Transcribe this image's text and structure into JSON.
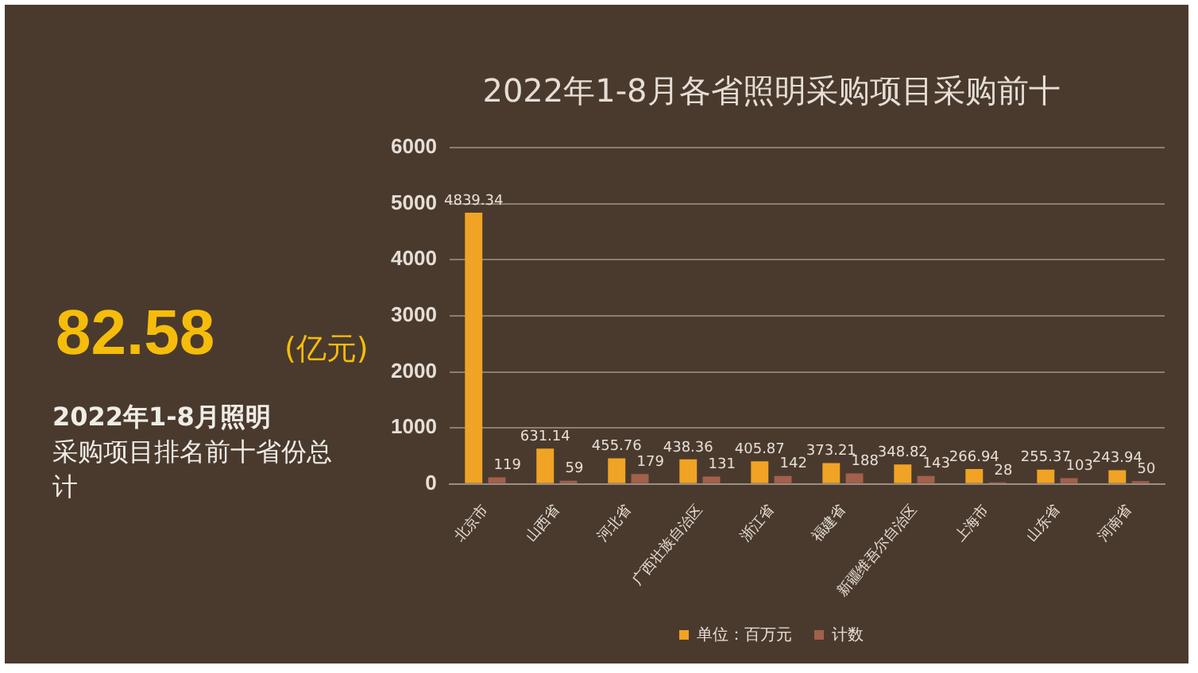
{
  "chart_data": {
    "type": "bar",
    "title": "2022年1-8月各省照明采购项目采购前十",
    "categories": [
      "北京市",
      "山西省",
      "河北省",
      "广西壮族自治区",
      "浙江省",
      "福建省",
      "新疆维吾尔自治区",
      "上海市",
      "山东省",
      "河南省"
    ],
    "series": [
      {
        "name": "单位：百万元",
        "color": "#f0a324",
        "values": [
          4839.34,
          631.14,
          455.76,
          438.36,
          405.87,
          373.21,
          348.82,
          266.94,
          255.37,
          243.94
        ]
      },
      {
        "name": "计数",
        "color": "#a3604c",
        "values": [
          119,
          59,
          179,
          131,
          142,
          188,
          143,
          28,
          103,
          50
        ]
      }
    ],
    "ylim": [
      0,
      6000
    ],
    "yticks": [
      0,
      1000,
      2000,
      3000,
      4000,
      5000,
      6000
    ],
    "grid": "y",
    "legend": "bottom",
    "data_labels": true,
    "annotations": [
      "82.58",
      "(亿元)",
      "2022年1-8月照明",
      "采购项目排名前十省份总计"
    ]
  }
}
